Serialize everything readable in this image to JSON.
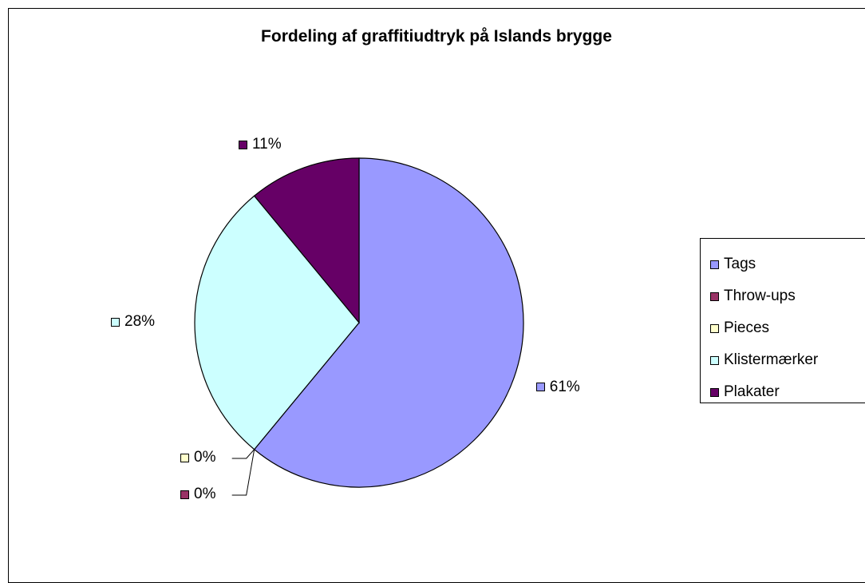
{
  "chart_data": {
    "type": "pie",
    "title": "Fordeling af graffitiudtryk på Islands brygge",
    "categories": [
      "Tags",
      "Throw-ups",
      "Pieces",
      "Klistermærker",
      "Plakater"
    ],
    "values": [
      61,
      0,
      0,
      28,
      11
    ],
    "value_labels": [
      "61%",
      "0%",
      "0%",
      "28%",
      "11%"
    ],
    "colors": [
      "#9999FF",
      "#993366",
      "#FFFFCC",
      "#CCFFFF",
      "#660066"
    ],
    "legend_position": "right"
  }
}
